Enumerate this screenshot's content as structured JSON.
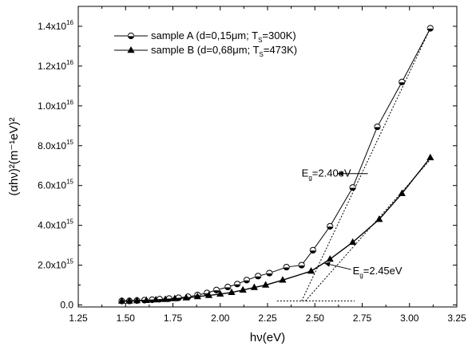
{
  "chart_data": {
    "type": "scatter",
    "xlabel": "hν(eV)",
    "ylabel": "(αhν)²(m⁻¹eV)²",
    "xlim": [
      1.25,
      3.25
    ],
    "ylim": [
      -100000000000000.0,
      1.5e+16
    ],
    "x_ticks": [
      1.25,
      1.5,
      1.75,
      2.0,
      2.25,
      2.5,
      2.75,
      3.0,
      3.25
    ],
    "x_tick_labels": [
      "1.25",
      "1.50",
      "1.75",
      "2.00",
      "2.25",
      "2.50",
      "2.75",
      "3.00",
      "3.25"
    ],
    "y_ticks": [
      0,
      2000000000000000.0,
      4000000000000000.0,
      6000000000000000.0,
      8000000000000000.0,
      1e+16,
      1.2e+16,
      1.4e+16
    ],
    "y_tick_labels": [
      {
        "mant": "0.0",
        "exp": ""
      },
      {
        "mant": "2.0x10",
        "exp": "15"
      },
      {
        "mant": "4.0x10",
        "exp": "15"
      },
      {
        "mant": "6.0x10",
        "exp": "15"
      },
      {
        "mant": "8.0x10",
        "exp": "15"
      },
      {
        "mant": "1.0x10",
        "exp": "16"
      },
      {
        "mant": "1.2x10",
        "exp": "16"
      },
      {
        "mant": "1.4x10",
        "exp": "16"
      }
    ],
    "legend_position": "top-left",
    "series": [
      {
        "name": "sample A (d=0,15μm; T",
        "name_sub": "S",
        "name_tail": "=300K)",
        "marker": "circle",
        "x": [
          1.48,
          1.52,
          1.56,
          1.6,
          1.64,
          1.68,
          1.73,
          1.78,
          1.83,
          1.88,
          1.93,
          1.98,
          2.04,
          2.09,
          2.14,
          2.2,
          2.26,
          2.35,
          2.43,
          2.49,
          2.58,
          2.7,
          2.83,
          2.96,
          3.11
        ],
        "y": [
          200000000000000.0,
          200000000000000.0,
          220000000000000.0,
          240000000000000.0,
          260000000000000.0,
          290000000000000.0,
          320000000000000.0,
          360000000000000.0,
          410000000000000.0,
          500000000000000.0,
          600000000000000.0,
          750000000000000.0,
          900000000000000.0,
          1050000000000000.0,
          1250000000000000.0,
          1450000000000000.0,
          1600000000000000.0,
          1900000000000000.0,
          2000000000000000.0,
          2750000000000000.0,
          3950000000000000.0,
          5900000000000000.0,
          8950000000000000.0,
          1.12e+16,
          1.39e+16
        ]
      },
      {
        "name": "sample B (d=0,68μm; T",
        "name_sub": "S",
        "name_tail": "=473K)",
        "marker": "triangle",
        "x": [
          1.48,
          1.52,
          1.56,
          1.61,
          1.66,
          1.71,
          1.76,
          1.82,
          1.88,
          1.94,
          2.0,
          2.06,
          2.12,
          2.18,
          2.24,
          2.33,
          2.48,
          2.58,
          2.7,
          2.84,
          2.96,
          3.11
        ],
        "y": [
          200000000000000.0,
          200000000000000.0,
          220000000000000.0,
          230000000000000.0,
          260000000000000.0,
          280000000000000.0,
          320000000000000.0,
          360000000000000.0,
          420000000000000.0,
          480000000000000.0,
          550000000000000.0,
          630000000000000.0,
          750000000000000.0,
          880000000000000.0,
          1000000000000000.0,
          1250000000000000.0,
          1700000000000000.0,
          2300000000000000.0,
          3150000000000000.0,
          4300000000000000.0,
          5600000000000000.0,
          7400000000000000.0
        ]
      }
    ],
    "fit_lines": [
      {
        "x": [
          2.43,
          3.11
        ],
        "y": [
          200000000000000.0,
          1.39e+16
        ],
        "style": "dotted"
      },
      {
        "x": [
          2.45,
          3.11
        ],
        "y": [
          200000000000000.0,
          7300000000000000.0
        ],
        "style": "dotted"
      },
      {
        "x": [
          2.3,
          2.71
        ],
        "y": [
          200000000000000.0,
          200000000000000.0
        ],
        "style": "dotted"
      }
    ],
    "annotations": [
      {
        "text": "E",
        "sub": "g",
        "tail": "=2.40eV",
        "anchor_x": 2.43,
        "anchor_y": 6600000000000000.0,
        "arrow_to_x": 2.62,
        "arrow_to_y": 6600000000000000.0
      },
      {
        "text": "E",
        "sub": "g",
        "tail": "=2.45eV",
        "anchor_x": 2.7,
        "anchor_y": 1700000000000000.0,
        "arrow_to_x": 2.55,
        "arrow_to_y": 2100000000000000.0
      }
    ]
  }
}
